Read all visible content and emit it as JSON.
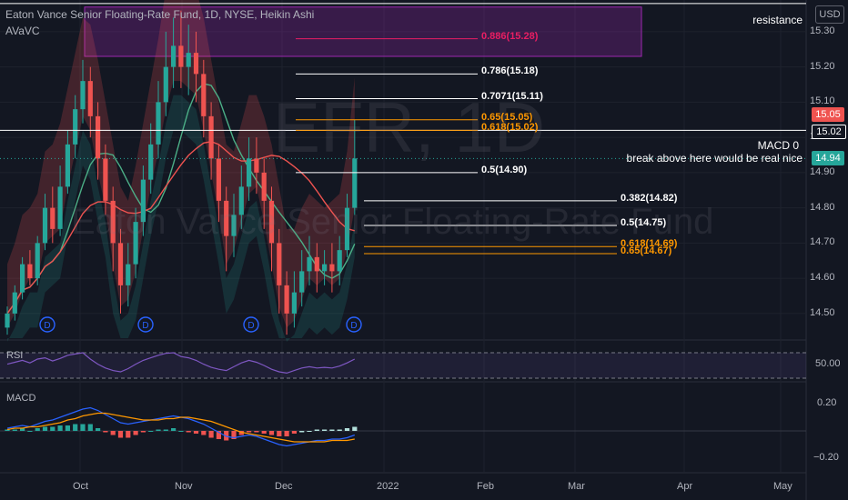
{
  "header": {
    "title": "Eaton Vance Senior Floating-Rate Fund, 1D, NYSE, Heikin Ashi",
    "indicator": "AVaVC"
  },
  "currency": "USD",
  "watermark": {
    "symbol": "EFR, 1D",
    "name": "Eaton Vance Senior Floating-Rate Fund"
  },
  "price_axis": [
    "15.30",
    "15.20",
    "15.10",
    "15.00",
    "14.90",
    "14.80",
    "14.70",
    "14.60",
    "14.50"
  ],
  "price_badges": [
    {
      "text": "15.05",
      "color": "#ef5350"
    },
    {
      "text": "15.02",
      "color": "#131722"
    },
    {
      "text": "14.94",
      "color": "#26a69a"
    }
  ],
  "time_axis": [
    "Oct",
    "Nov",
    "Dec",
    "2022",
    "Feb",
    "Mar",
    "Apr",
    "May"
  ],
  "fib_levels": [
    {
      "label": "0.886(15.28)",
      "value": 15.28,
      "color": "#e91e63"
    },
    {
      "label": "0.786(15.18)",
      "value": 15.18,
      "color": "#ffffff"
    },
    {
      "label": "0.7071(15.11)",
      "value": 15.11,
      "color": "#ffffff"
    },
    {
      "label": "0.65(15.05)",
      "value": 15.05,
      "color": "#ff9800"
    },
    {
      "label": "0.618(15.02)",
      "value": 15.02,
      "color": "#ff9800"
    },
    {
      "label": "0.5(14.90)",
      "value": 14.9,
      "color": "#ffffff"
    },
    {
      "label": "0.382(14.82)",
      "value": 14.82,
      "color": "#ffffff"
    },
    {
      "label": "0.5(14.75)",
      "value": 14.75,
      "color": "#ffffff"
    },
    {
      "label": "0.618(14.69)",
      "value": 14.69,
      "color": "#ff9800"
    },
    {
      "label": "0.65(14.67)",
      "value": 14.67,
      "color": "#ff9800"
    }
  ],
  "annotations": {
    "resistance": "resistance",
    "macd_zero": "MACD 0",
    "breakout": "break above here would be real nice"
  },
  "dividend_marker": "D",
  "rsi": {
    "title": "RSI",
    "level": "50.00"
  },
  "macd": {
    "title": "MACD",
    "axis": [
      "0.20",
      "−0.20"
    ]
  },
  "chart_data": {
    "type": "candlestick",
    "style": "Heikin Ashi",
    "ylim": [
      14.43,
      15.39
    ],
    "y_ticks": [
      14.5,
      14.6,
      14.7,
      14.8,
      14.9,
      15.0,
      15.1,
      15.2,
      15.3
    ],
    "x_months": [
      "Oct",
      "Nov",
      "Dec",
      "2022",
      "Feb",
      "Mar",
      "Apr",
      "May"
    ],
    "resistance_line": 15.38,
    "macd_zero_line": 15.02,
    "resistance_zone": [
      15.23,
      15.37
    ],
    "candles": [
      [
        14.46,
        14.5,
        14.44,
        14.52
      ],
      [
        14.5,
        14.56,
        14.48,
        14.58
      ],
      [
        14.56,
        14.64,
        14.54,
        14.66
      ],
      [
        14.64,
        14.6,
        14.58,
        14.68
      ],
      [
        14.6,
        14.7,
        14.58,
        14.72
      ],
      [
        14.7,
        14.8,
        14.68,
        14.84
      ],
      [
        14.8,
        14.74,
        14.7,
        14.86
      ],
      [
        14.74,
        14.86,
        14.72,
        14.92
      ],
      [
        14.86,
        14.98,
        14.84,
        15.02
      ],
      [
        14.98,
        15.08,
        14.94,
        15.12
      ],
      [
        15.08,
        15.16,
        15.04,
        15.22
      ],
      [
        15.16,
        15.06,
        15.0,
        15.2
      ],
      [
        15.06,
        14.94,
        14.88,
        15.1
      ],
      [
        14.94,
        14.82,
        14.78,
        14.98
      ],
      [
        14.82,
        14.7,
        14.62,
        14.86
      ],
      [
        14.7,
        14.58,
        14.5,
        14.74
      ],
      [
        14.58,
        14.64,
        14.52,
        14.7
      ],
      [
        14.64,
        14.76,
        14.6,
        14.8
      ],
      [
        14.76,
        14.88,
        14.72,
        14.92
      ],
      [
        14.88,
        14.98,
        14.84,
        15.04
      ],
      [
        14.98,
        15.1,
        14.94,
        15.16
      ],
      [
        15.1,
        15.2,
        15.06,
        15.3
      ],
      [
        15.2,
        15.26,
        15.14,
        15.34
      ],
      [
        15.26,
        15.2,
        15.14,
        15.36
      ],
      [
        15.2,
        15.24,
        15.12,
        15.32
      ],
      [
        15.24,
        15.18,
        15.1,
        15.3
      ],
      [
        15.18,
        15.06,
        15.0,
        15.22
      ],
      [
        15.06,
        14.94,
        14.88,
        15.1
      ],
      [
        14.94,
        14.82,
        14.76,
        14.98
      ],
      [
        14.82,
        14.72,
        14.62,
        14.86
      ],
      [
        14.72,
        14.78,
        14.66,
        14.84
      ],
      [
        14.78,
        14.86,
        14.74,
        14.92
      ],
      [
        14.86,
        14.94,
        14.82,
        15.0
      ],
      [
        14.94,
        14.9,
        14.84,
        15.0
      ],
      [
        14.9,
        14.82,
        14.74,
        14.94
      ],
      [
        14.82,
        14.7,
        14.62,
        14.86
      ],
      [
        14.7,
        14.58,
        14.5,
        14.74
      ],
      [
        14.58,
        14.5,
        14.44,
        14.62
      ],
      [
        14.5,
        14.56,
        14.46,
        14.62
      ],
      [
        14.56,
        14.62,
        14.52,
        14.68
      ],
      [
        14.62,
        14.66,
        14.58,
        14.72
      ],
      [
        14.66,
        14.62,
        14.56,
        14.7
      ],
      [
        14.62,
        14.64,
        14.58,
        14.68
      ],
      [
        14.64,
        14.62,
        14.56,
        14.7
      ],
      [
        14.62,
        14.68,
        14.58,
        14.72
      ],
      [
        14.68,
        14.8,
        14.66,
        14.84
      ],
      [
        14.8,
        14.94,
        14.78,
        15.05
      ]
    ],
    "rsi_values": [
      52,
      55,
      58,
      54,
      60,
      62,
      57,
      61,
      66,
      68,
      70,
      60,
      52,
      46,
      42,
      40,
      45,
      52,
      58,
      62,
      66,
      69,
      70,
      64,
      62,
      58,
      52,
      47,
      44,
      42,
      48,
      54,
      58,
      55,
      50,
      44,
      40,
      38,
      42,
      46,
      48,
      46,
      47,
      46,
      49,
      54,
      60
    ],
    "macd_line": [
      0.02,
      0.03,
      0.04,
      0.03,
      0.05,
      0.07,
      0.08,
      0.1,
      0.12,
      0.14,
      0.16,
      0.17,
      0.15,
      0.12,
      0.09,
      0.06,
      0.05,
      0.06,
      0.07,
      0.08,
      0.09,
      0.1,
      0.11,
      0.1,
      0.09,
      0.07,
      0.05,
      0.02,
      -0.01,
      -0.04,
      -0.05,
      -0.04,
      -0.03,
      -0.04,
      -0.06,
      -0.08,
      -0.1,
      -0.11,
      -0.1,
      -0.09,
      -0.08,
      -0.07,
      -0.07,
      -0.06,
      -0.06,
      -0.05,
      -0.03
    ],
    "macd_signal": [
      0.01,
      0.02,
      0.02,
      0.03,
      0.03,
      0.04,
      0.05,
      0.06,
      0.08,
      0.09,
      0.11,
      0.12,
      0.13,
      0.13,
      0.12,
      0.11,
      0.1,
      0.09,
      0.08,
      0.08,
      0.08,
      0.09,
      0.09,
      0.1,
      0.1,
      0.09,
      0.08,
      0.07,
      0.05,
      0.03,
      0.01,
      -0.01,
      -0.02,
      -0.03,
      -0.04,
      -0.05,
      -0.06,
      -0.07,
      -0.08,
      -0.08,
      -0.08,
      -0.08,
      -0.08,
      -0.07,
      -0.07,
      -0.07,
      -0.06
    ],
    "macd_histogram": [
      0.01,
      0.01,
      0.02,
      0.0,
      0.02,
      0.03,
      0.03,
      0.04,
      0.04,
      0.05,
      0.05,
      0.05,
      0.02,
      -0.01,
      -0.03,
      -0.05,
      -0.05,
      -0.03,
      -0.01,
      0.0,
      0.01,
      0.01,
      0.02,
      0.0,
      -0.01,
      -0.02,
      -0.03,
      -0.05,
      -0.06,
      -0.07,
      -0.06,
      -0.03,
      -0.01,
      -0.01,
      -0.02,
      -0.03,
      -0.04,
      -0.04,
      -0.02,
      -0.01,
      0.0,
      0.01,
      0.01,
      0.01,
      0.01,
      0.02,
      0.03
    ]
  }
}
